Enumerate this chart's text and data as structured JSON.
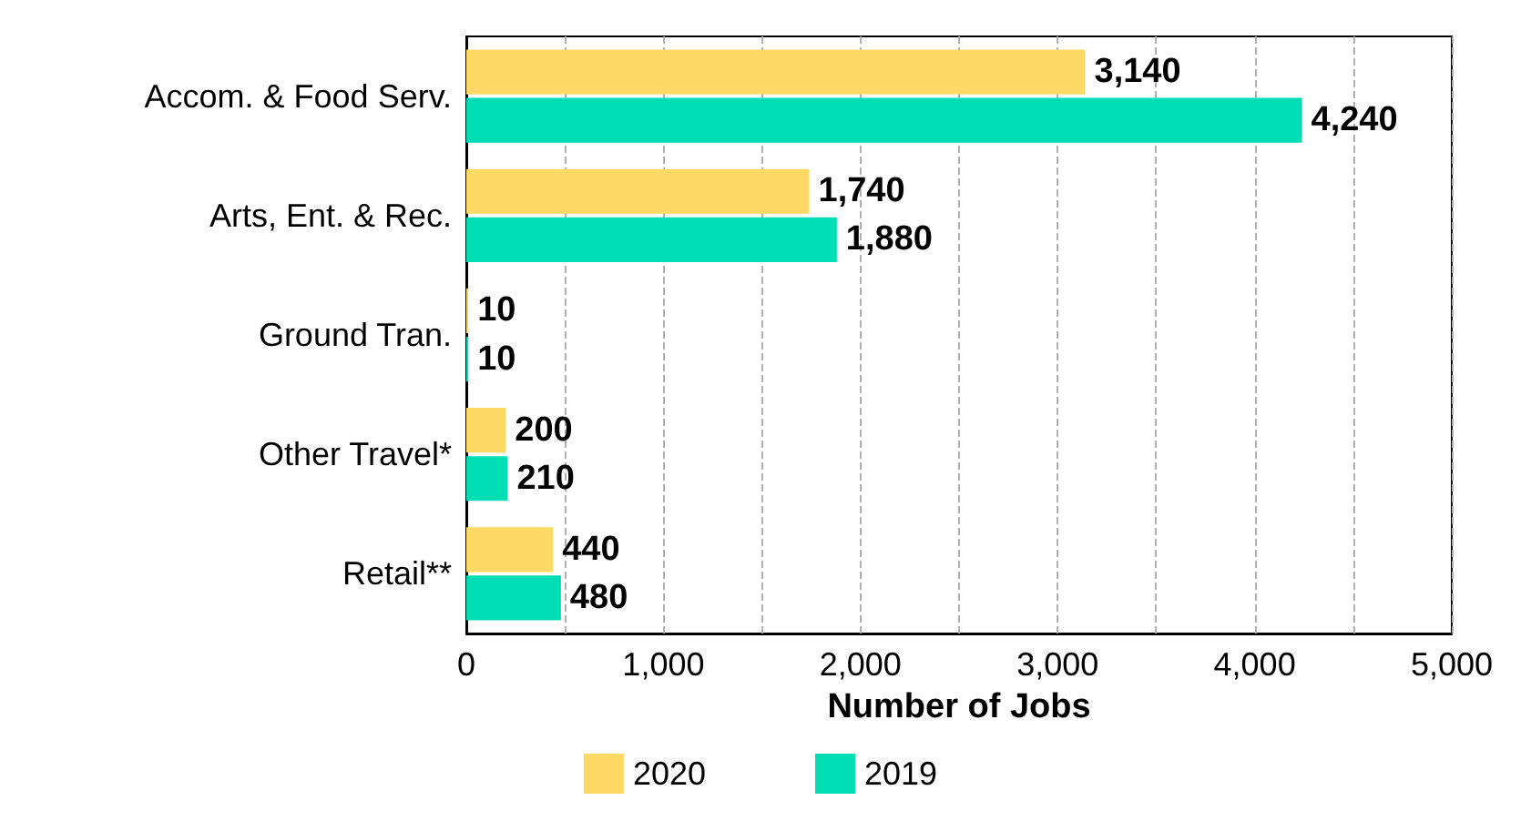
{
  "chart_data": {
    "type": "bar",
    "orientation": "horizontal",
    "xlabel": "Number of Jobs",
    "categories": [
      "Accom. & Food Serv.",
      "Arts, Ent. & Rec.",
      "Ground Tran.",
      "Other Travel*",
      "Retail**"
    ],
    "series": [
      {
        "name": "2020",
        "color": "#ffd966",
        "values": [
          3140,
          1740,
          10,
          200,
          440
        ],
        "value_labels": [
          "3,140",
          "1,740",
          "10",
          "200",
          "440"
        ]
      },
      {
        "name": "2019",
        "color": "#00ddb4",
        "values": [
          4240,
          1880,
          10,
          210,
          480
        ],
        "value_labels": [
          "4,240",
          "1,880",
          "10",
          "210",
          "480"
        ]
      }
    ],
    "xlim": [
      0,
      5000
    ],
    "xticks": [
      {
        "value": 0,
        "label": "0"
      },
      {
        "value": 500,
        "label": null
      },
      {
        "value": 1000,
        "label": "1,000"
      },
      {
        "value": 1500,
        "label": null
      },
      {
        "value": 2000,
        "label": "2,000"
      },
      {
        "value": 2500,
        "label": null
      },
      {
        "value": 3000,
        "label": "3,000"
      },
      {
        "value": 3500,
        "label": null
      },
      {
        "value": 4000,
        "label": "4,000"
      },
      {
        "value": 4500,
        "label": null
      },
      {
        "value": 5000,
        "label": "5,000"
      }
    ],
    "grid": "x",
    "legend": "bottom"
  }
}
